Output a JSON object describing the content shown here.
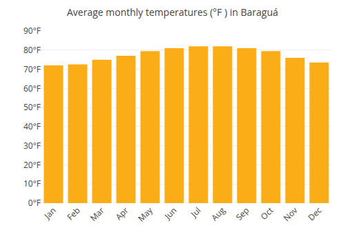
{
  "chart_data": {
    "type": "bar",
    "title": "Average monthly temperatures (°F ) in Baraguá",
    "categories": [
      "Jan",
      "Feb",
      "Mar",
      "Apr",
      "May",
      "Jun",
      "Jul",
      "Aug",
      "Sep",
      "Oct",
      "Nov",
      "Dec"
    ],
    "values": [
      72,
      72.5,
      75,
      77,
      79.5,
      81,
      82,
      82,
      81,
      79.5,
      76,
      73.5
    ],
    "color": "#FBAD18",
    "ylim": [
      0,
      90
    ],
    "yticks": [
      {
        "value": 0,
        "label": "0°F"
      },
      {
        "value": 10,
        "label": "10°F"
      },
      {
        "value": 20,
        "label": "20°F"
      },
      {
        "value": 30,
        "label": "30°F"
      },
      {
        "value": 40,
        "label": "40°F"
      },
      {
        "value": 50,
        "label": "50°F"
      },
      {
        "value": 60,
        "label": "60°F"
      },
      {
        "value": 70,
        "label": "70°F"
      },
      {
        "value": 80,
        "label": "80°F"
      },
      {
        "value": 90,
        "label": "90°F"
      }
    ],
    "grid": true
  }
}
